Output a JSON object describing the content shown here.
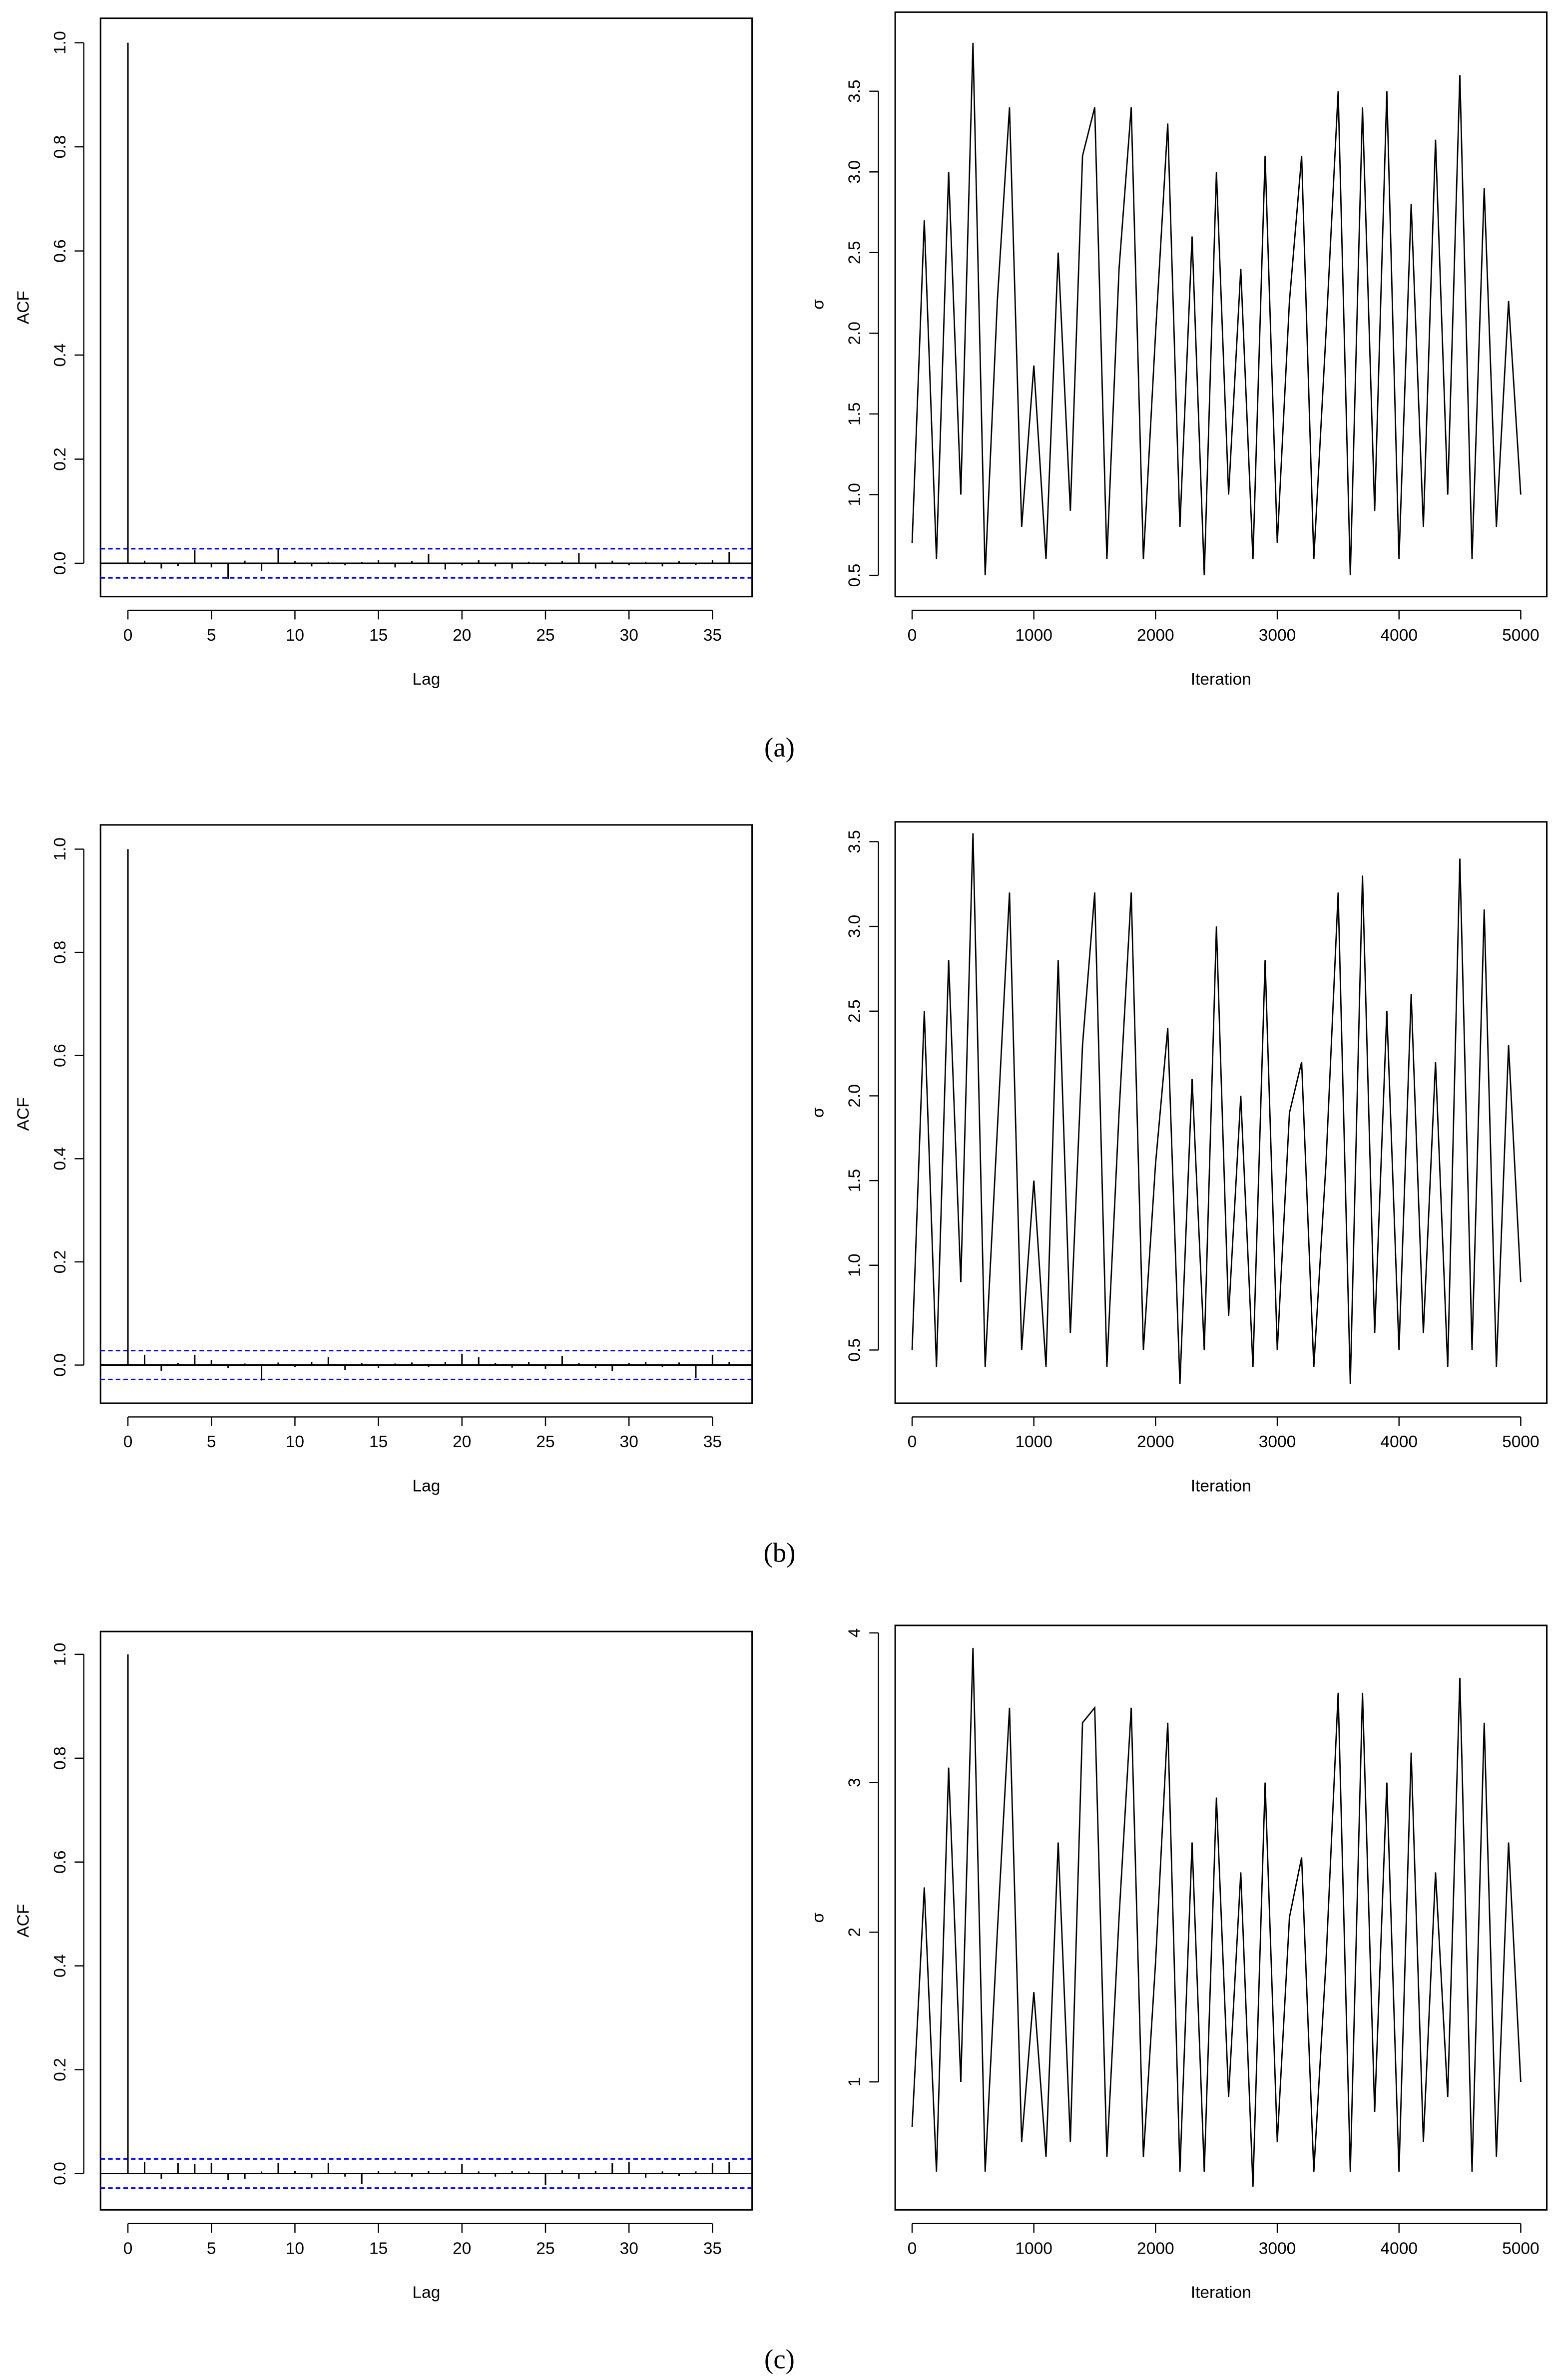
{
  "chart_data": [
    {
      "type": "acf",
      "xlabel": "Lag",
      "ylabel": "ACF",
      "x": [
        0,
        1,
        2,
        3,
        4,
        5,
        6,
        7,
        8,
        9,
        10,
        11,
        12,
        13,
        14,
        15,
        16,
        17,
        18,
        19,
        20,
        21,
        22,
        23,
        24,
        25,
        26,
        27,
        28,
        29,
        30,
        31,
        32,
        33,
        34,
        35,
        36
      ],
      "values": [
        1.0,
        0.005,
        -0.01,
        -0.005,
        0.025,
        -0.008,
        -0.03,
        0.005,
        -0.015,
        0.028,
        0.004,
        -0.006,
        0.003,
        -0.004,
        0.002,
        0.006,
        -0.008,
        0.004,
        0.018,
        -0.012,
        -0.004,
        0.006,
        -0.006,
        -0.01,
        0.003,
        -0.005,
        0.004,
        0.02,
        -0.01,
        0.005,
        -0.004,
        0.003,
        -0.006,
        0.004,
        -0.003,
        0.006,
        0.022
      ],
      "confidence_bounds": [
        -0.028,
        0.028
      ],
      "bound_color": "#0000ff",
      "color": "#000000",
      "xlim": [
        -1.64,
        37.37
      ],
      "ylim": [
        -0.064,
        1.047
      ],
      "xticks": [
        0,
        5,
        10,
        15,
        20,
        25,
        30,
        35
      ],
      "yticks": [
        {
          "value": 0,
          "label": "0.0"
        },
        0.2,
        0.4,
        0.6,
        0.8,
        {
          "value": 1,
          "label": "1.0"
        }
      ]
    },
    {
      "type": "line",
      "xlabel": "Iteration",
      "ylabel": "σ",
      "color": "#000000",
      "x": [
        0,
        100,
        200,
        300,
        400,
        500,
        600,
        700,
        800,
        900,
        1000,
        1100,
        1200,
        1300,
        1400,
        1500,
        1600,
        1700,
        1800,
        1900,
        2000,
        2100,
        2200,
        2300,
        2400,
        2500,
        2600,
        2700,
        2800,
        2900,
        3000,
        3100,
        3200,
        3300,
        3400,
        3500,
        3600,
        3700,
        3800,
        3900,
        4000,
        4100,
        4200,
        4300,
        4400,
        4500,
        4600,
        4700,
        4800,
        4900,
        5000
      ],
      "values": [
        0.7,
        2.7,
        0.6,
        3.0,
        1.0,
        3.8,
        0.5,
        2.2,
        3.4,
        0.8,
        1.8,
        0.6,
        2.5,
        0.9,
        3.1,
        3.4,
        0.6,
        2.4,
        3.4,
        0.6,
        2.0,
        3.3,
        0.8,
        2.6,
        0.5,
        3.0,
        1.0,
        2.4,
        0.6,
        3.1,
        0.7,
        2.2,
        3.1,
        0.6,
        2.0,
        3.5,
        0.5,
        3.4,
        0.9,
        3.5,
        0.6,
        2.8,
        0.8,
        3.2,
        1.0,
        3.6,
        0.6,
        2.9,
        0.8,
        2.2,
        1.0
      ],
      "xlim": [
        -139,
        5214
      ],
      "ylim": [
        0.368,
        3.99
      ],
      "xticks": [
        0,
        1000,
        2000,
        3000,
        4000,
        5000
      ],
      "yticks": [
        0.5,
        {
          "value": 1,
          "label": "1.0"
        },
        1.5,
        {
          "value": 2,
          "label": "2.0"
        },
        2.5,
        {
          "value": 3,
          "label": "3.0"
        },
        3.5
      ]
    },
    {
      "type": "acf",
      "xlabel": "Lag",
      "ylabel": "ACF",
      "x": [
        0,
        1,
        2,
        3,
        4,
        5,
        6,
        7,
        8,
        9,
        10,
        11,
        12,
        13,
        14,
        15,
        16,
        17,
        18,
        19,
        20,
        21,
        22,
        23,
        24,
        25,
        26,
        27,
        28,
        29,
        30,
        31,
        32,
        33,
        34,
        35,
        36
      ],
      "values": [
        1.0,
        0.02,
        -0.012,
        0.004,
        0.02,
        0.01,
        -0.006,
        0.003,
        -0.03,
        0.005,
        -0.004,
        0.006,
        0.015,
        -0.01,
        0.004,
        -0.006,
        0.003,
        0.005,
        -0.004,
        0.006,
        0.022,
        0.015,
        0.004,
        -0.005,
        0.006,
        -0.008,
        0.018,
        0.004,
        -0.006,
        -0.012,
        0.004,
        0.006,
        -0.004,
        0.005,
        -0.025,
        0.02,
        0.006
      ],
      "confidence_bounds": [
        -0.028,
        0.028
      ],
      "bound_color": "#0000ff",
      "color": "#000000",
      "xlim": [
        -1.64,
        37.37
      ],
      "ylim": [
        -0.074,
        1.047
      ],
      "xticks": [
        0,
        5,
        10,
        15,
        20,
        25,
        30,
        35
      ],
      "yticks": [
        {
          "value": 0,
          "label": "0.0"
        },
        0.2,
        0.4,
        0.6,
        0.8,
        {
          "value": 1,
          "label": "1.0"
        }
      ]
    },
    {
      "type": "line",
      "xlabel": "Iteration",
      "ylabel": "σ",
      "color": "#000000",
      "x": [
        0,
        100,
        200,
        300,
        400,
        500,
        600,
        700,
        800,
        900,
        1000,
        1100,
        1200,
        1300,
        1400,
        1500,
        1600,
        1700,
        1800,
        1900,
        2000,
        2100,
        2200,
        2300,
        2400,
        2500,
        2600,
        2700,
        2800,
        2900,
        3000,
        3100,
        3200,
        3300,
        3400,
        3500,
        3600,
        3700,
        3800,
        3900,
        4000,
        4100,
        4200,
        4300,
        4400,
        4500,
        4600,
        4700,
        4800,
        4900,
        5000
      ],
      "values": [
        0.5,
        2.5,
        0.4,
        2.8,
        0.9,
        3.55,
        0.4,
        1.8,
        3.2,
        0.5,
        1.5,
        0.4,
        2.8,
        0.6,
        2.3,
        3.2,
        0.4,
        1.9,
        3.2,
        0.5,
        1.6,
        2.4,
        0.3,
        2.1,
        0.5,
        3.0,
        0.7,
        2.0,
        0.4,
        2.8,
        0.5,
        1.9,
        2.2,
        0.4,
        1.6,
        3.2,
        0.3,
        3.3,
        0.6,
        2.5,
        0.5,
        2.6,
        0.6,
        2.2,
        0.4,
        3.4,
        0.5,
        3.1,
        0.4,
        2.3,
        0.9
      ],
      "xlim": [
        -139,
        5214
      ],
      "ylim": [
        0.186,
        3.617
      ],
      "xticks": [
        0,
        1000,
        2000,
        3000,
        4000,
        5000
      ],
      "yticks": [
        0.5,
        {
          "value": 1,
          "label": "1.0"
        },
        1.5,
        {
          "value": 2,
          "label": "2.0"
        },
        2.5,
        {
          "value": 3,
          "label": "3.0"
        },
        3.5
      ]
    },
    {
      "type": "acf",
      "xlabel": "Lag",
      "ylabel": "ACF",
      "x": [
        0,
        1,
        2,
        3,
        4,
        5,
        6,
        7,
        8,
        9,
        10,
        11,
        12,
        13,
        14,
        15,
        16,
        17,
        18,
        19,
        20,
        21,
        22,
        23,
        24,
        25,
        26,
        27,
        28,
        29,
        30,
        31,
        32,
        33,
        34,
        35,
        36
      ],
      "values": [
        1.0,
        0.022,
        -0.01,
        0.02,
        0.018,
        0.02,
        -0.012,
        -0.01,
        0.004,
        0.02,
        0.005,
        -0.008,
        0.02,
        -0.006,
        -0.02,
        0.005,
        0.004,
        -0.006,
        0.005,
        0.004,
        0.018,
        0.004,
        -0.006,
        0.005,
        0.004,
        -0.022,
        0.006,
        -0.01,
        0.005,
        0.02,
        0.022,
        -0.008,
        0.004,
        -0.005,
        0.004,
        0.02,
        0.022
      ],
      "confidence_bounds": [
        -0.028,
        0.028
      ],
      "bound_color": "#0000ff",
      "color": "#000000",
      "xlim": [
        -1.64,
        37.37
      ],
      "ylim": [
        -0.07,
        1.044
      ],
      "xticks": [
        0,
        5,
        10,
        15,
        20,
        25,
        30,
        35
      ],
      "yticks": [
        {
          "value": 0,
          "label": "0.0"
        },
        0.2,
        0.4,
        0.6,
        0.8,
        {
          "value": 1,
          "label": "1.0"
        }
      ]
    },
    {
      "type": "line",
      "xlabel": "Iteration",
      "ylabel": "σ",
      "color": "#000000",
      "x": [
        0,
        100,
        200,
        300,
        400,
        500,
        600,
        700,
        800,
        900,
        1000,
        1100,
        1200,
        1300,
        1400,
        1500,
        1600,
        1700,
        1800,
        1900,
        2000,
        2100,
        2200,
        2300,
        2400,
        2500,
        2600,
        2700,
        2800,
        2900,
        3000,
        3100,
        3200,
        3300,
        3400,
        3500,
        3600,
        3700,
        3800,
        3900,
        4000,
        4100,
        4200,
        4300,
        4400,
        4500,
        4600,
        4700,
        4800,
        4900,
        5000
      ],
      "values": [
        0.7,
        2.3,
        0.4,
        3.1,
        1.0,
        3.9,
        0.4,
        2.0,
        3.5,
        0.6,
        1.6,
        0.5,
        2.6,
        0.6,
        3.4,
        3.5,
        0.5,
        2.1,
        3.5,
        0.5,
        1.8,
        3.4,
        0.4,
        2.6,
        0.4,
        2.9,
        0.9,
        2.4,
        0.3,
        3.0,
        0.6,
        2.1,
        2.5,
        0.4,
        1.8,
        3.6,
        0.4,
        3.6,
        0.8,
        3.0,
        0.4,
        3.2,
        0.6,
        2.4,
        0.9,
        3.7,
        0.4,
        3.4,
        0.5,
        2.6,
        1.0
      ],
      "xlim": [
        -139,
        5214
      ],
      "ylim": [
        0.145,
        4.05
      ],
      "xticks": [
        0,
        1000,
        2000,
        3000,
        4000,
        5000
      ],
      "yticks": [
        1,
        2,
        3,
        4
      ]
    }
  ],
  "captions": [
    "(a)",
    "(b)",
    "(c)"
  ]
}
